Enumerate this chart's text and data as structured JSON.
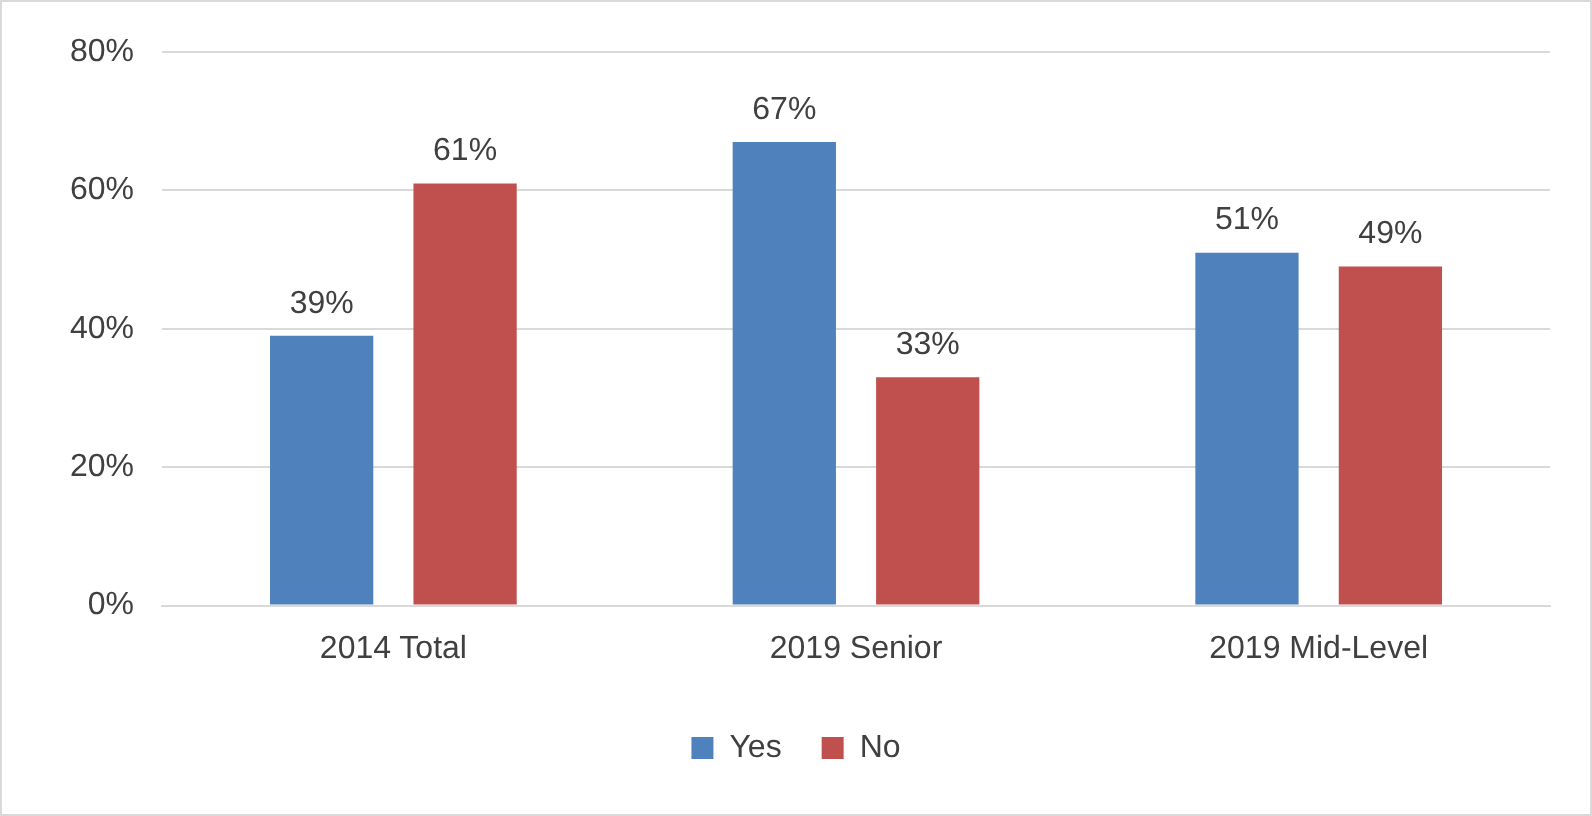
{
  "chart_data": {
    "type": "bar",
    "categories": [
      "2014 Total",
      "2019 Senior",
      "2019 Mid-Level"
    ],
    "series": [
      {
        "name": "Yes",
        "color": "#4f81bd",
        "values": [
          39,
          67,
          51
        ]
      },
      {
        "name": "No",
        "color": "#c0504d",
        "values": [
          61,
          33,
          49
        ]
      }
    ],
    "ylim": [
      0,
      80
    ],
    "yticks": [
      {
        "value": 0,
        "label": "0%"
      },
      {
        "value": 20,
        "label": "20%"
      },
      {
        "value": 40,
        "label": "40%"
      },
      {
        "value": 60,
        "label": "60%"
      },
      {
        "value": 80,
        "label": "80%"
      }
    ],
    "value_labels": [
      [
        "39%",
        "67%",
        "51%"
      ],
      [
        "61%",
        "33%",
        "49%"
      ]
    ],
    "grid": "y",
    "legend": "bottom"
  }
}
